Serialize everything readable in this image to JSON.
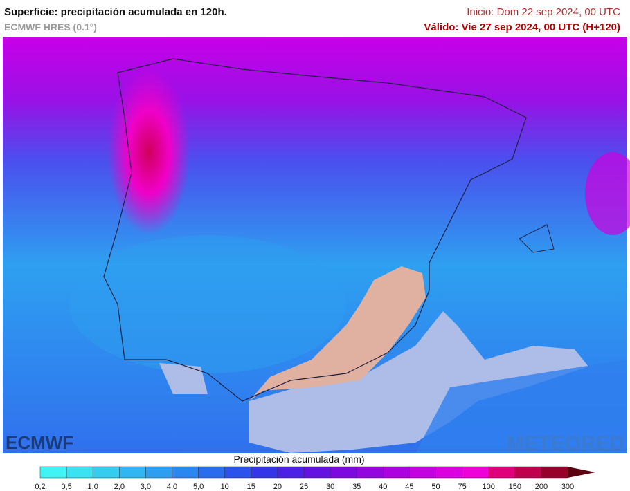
{
  "header": {
    "title": "Superficie: precipitación acumulada en 120h.",
    "model": "ECMWF HRES (0.1°)",
    "init": "Inicio: Dom 22 sep 2024, 00 UTC",
    "valid": "Válido: Vie 27 sep 2024, 00 UTC (H+120)"
  },
  "logos": {
    "left": "ECMWF",
    "right": "METEORED"
  },
  "legend": {
    "title": "Precipitación acumulada (mm)",
    "labels": [
      "0,2",
      "0,5",
      "1,0",
      "2,0",
      "3,0",
      "4,0",
      "5,0",
      "10",
      "15",
      "20",
      "25",
      "30",
      "35",
      "40",
      "45",
      "50",
      "75",
      "100",
      "150",
      "200",
      "300"
    ],
    "colors": [
      "#40f4f6",
      "#3ae2f2",
      "#34cdf0",
      "#30b6f0",
      "#2e9ef0",
      "#2c86ef",
      "#2a6cee",
      "#2b52ec",
      "#3434e8",
      "#4c20e6",
      "#6412e2",
      "#7c0ae0",
      "#9406e0",
      "#ac02e0",
      "#c400e0",
      "#dc00e0",
      "#f000d8",
      "#e0007a",
      "#c0004c",
      "#98002c",
      "#5c0010"
    ]
  }
}
